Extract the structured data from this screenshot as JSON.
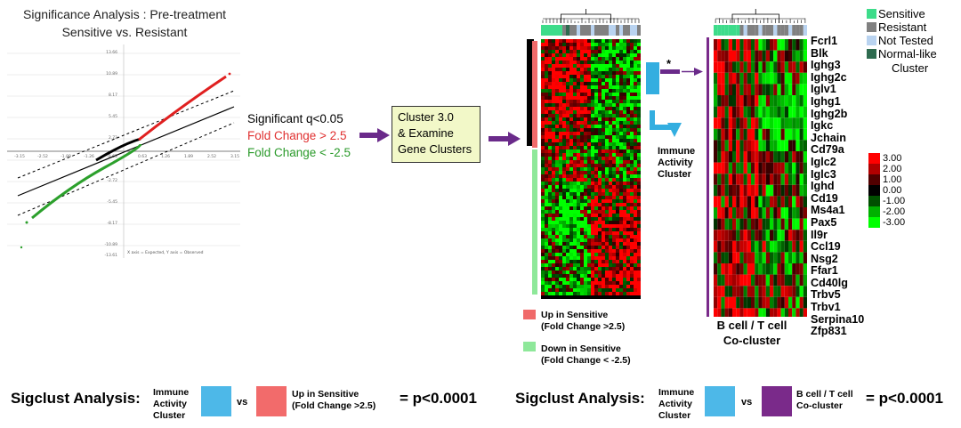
{
  "plot_title_1": "Significance Analysis : Pre-treatment",
  "plot_title_2": "Sensitive vs. Resistant",
  "plot_x_ticks": [
    "-3.15",
    "-2.52",
    "-1.89",
    "-1.26",
    "-0.63",
    "0.63",
    "1.26",
    "1.89",
    "2.52",
    "3.15"
  ],
  "plot_y_ticks": [
    "13.66",
    "10.89",
    "8.17",
    "5.45",
    "2.72",
    "-2.72",
    "-5.45",
    "-8.17",
    "-10.89",
    "-13.61"
  ],
  "plot_axis_caption": "X axis = Expected, Y axis = Observed",
  "criteria": {
    "line1": "Significant q<0.05",
    "line2": "Fold Change > 2.5",
    "line3": "Fold Change < -2.5"
  },
  "cluster_box": {
    "line1": "Cluster 3.0",
    "line2": "& Examine",
    "line3": "Gene Clusters"
  },
  "star": "*",
  "immune_label": [
    "Immune",
    "Activity",
    "Cluster"
  ],
  "legend_top": [
    {
      "label": "Sensitive",
      "color": "#3ddc8a"
    },
    {
      "label": "Resistant",
      "color": "#808080"
    },
    {
      "label": "Not Tested",
      "color": "#b9d3f0"
    },
    {
      "label": "Normal-like",
      "color": "#2e6b4f"
    }
  ],
  "legend_top_cluster": "Cluster",
  "genes": [
    "Fcrl1",
    "Blk",
    "Ighg3",
    "Ighg2c",
    "Iglv1",
    "Ighg1",
    "Ighg2b",
    "Igkc",
    "Jchain",
    "Cd79a",
    "Iglc2",
    "Iglc3",
    "Ighd",
    "Cd19",
    "Ms4a1",
    "Pax5",
    "Il9r",
    "Ccl19",
    "Nsg2",
    "Ffar1",
    "Cd40lg",
    "Trbv5",
    "Trbv1",
    "Serpina10",
    "Zfp831"
  ],
  "color_scale": {
    "labels": [
      "3.00",
      "2.00",
      "1.00",
      "0.00",
      "-1.00",
      "-2.00",
      "-3.00"
    ],
    "colors": [
      "#ff0000",
      "#b00000",
      "#500000",
      "#000000",
      "#005000",
      "#00b000",
      "#00ff00"
    ]
  },
  "heatmap_legend": {
    "up_line1": "Up in Sensitive",
    "up_line2": "(Fold Change >2.5)",
    "down_line1": "Down in Sensitive",
    "down_line2": "(Fold Change < -2.5)"
  },
  "cocluster": [
    "B cell / T cell",
    "Co-cluster"
  ],
  "bottom_left": {
    "label": "Sigclust Analysis:",
    "a": [
      "Immune",
      "Activity",
      "Cluster"
    ],
    "vs": "vs",
    "b": [
      "Up in Sensitive",
      "(Fold Change >2.5)"
    ],
    "result": "= p<0.0001"
  },
  "bottom_right": {
    "label": "Sigclust Analysis:",
    "a": [
      "Immune",
      "Activity",
      "Cluster"
    ],
    "vs": "vs",
    "b": [
      "B cell / T cell",
      "Co-cluster"
    ],
    "result": "= p<0.0001"
  },
  "colors": {
    "red": "#e03030",
    "green": "#2a9a2a",
    "purple": "#6a2a8a",
    "blue": "#33aee0",
    "salmon": "#f06a6a",
    "lightgreen": "#8ee89a",
    "purple_box": "#7a2a8a"
  }
}
